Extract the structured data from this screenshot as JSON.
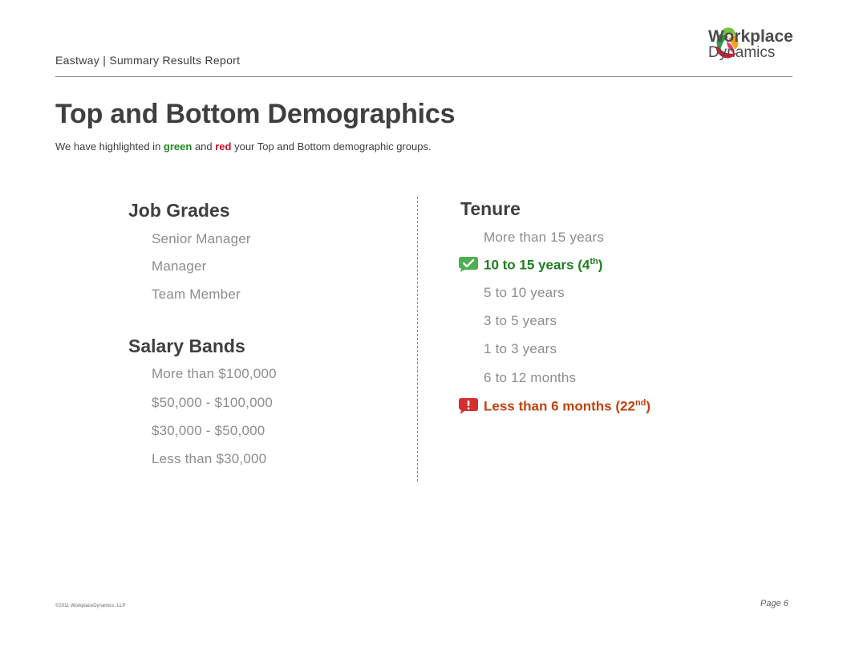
{
  "header": {
    "title": "Eastway | Summary Results Report"
  },
  "logo": {
    "line1": "Workplace",
    "line2": "Dynamics"
  },
  "page": {
    "title": "Top and Bottom Demographics",
    "subtitle": {
      "part1": "We have highlighted in ",
      "green_word": "green",
      "part2": " and ",
      "red_word": "red",
      "part3": " your Top and Bottom demographic groups."
    }
  },
  "job_grades": {
    "heading": "Job Grades",
    "items": [
      "Senior Manager",
      "Manager",
      "Team Member"
    ]
  },
  "salary_bands": {
    "heading": "Salary Bands",
    "items": [
      "More than $100,000",
      "$50,000 - $100,000",
      "$30,000 - $50,000",
      "Less than $30,000"
    ]
  },
  "tenure": {
    "heading": "Tenure",
    "item0": "More than 15 years",
    "top": {
      "label": "10 to 15 years (4",
      "sup": "th",
      "close": ")"
    },
    "item2": "5 to 10 years",
    "item3": "3 to 5 years",
    "item4": "1 to 3 years",
    "item5": "6 to 12 months",
    "bottom": {
      "label": "Less than 6 months (22",
      "sup": "nd",
      "close": ")"
    }
  },
  "colors": {
    "top": "#1f7d1f",
    "bottom": "#c0420c",
    "badge_top": "#4caf50",
    "badge_bottom": "#d32f2f"
  },
  "icons": {
    "top_badge": "check-bubble-icon",
    "bottom_badge": "exclamation-bubble-icon"
  },
  "footer": {
    "copyright": "©2011 WorkplaceDynamics, LLP",
    "page": "Page 6"
  }
}
